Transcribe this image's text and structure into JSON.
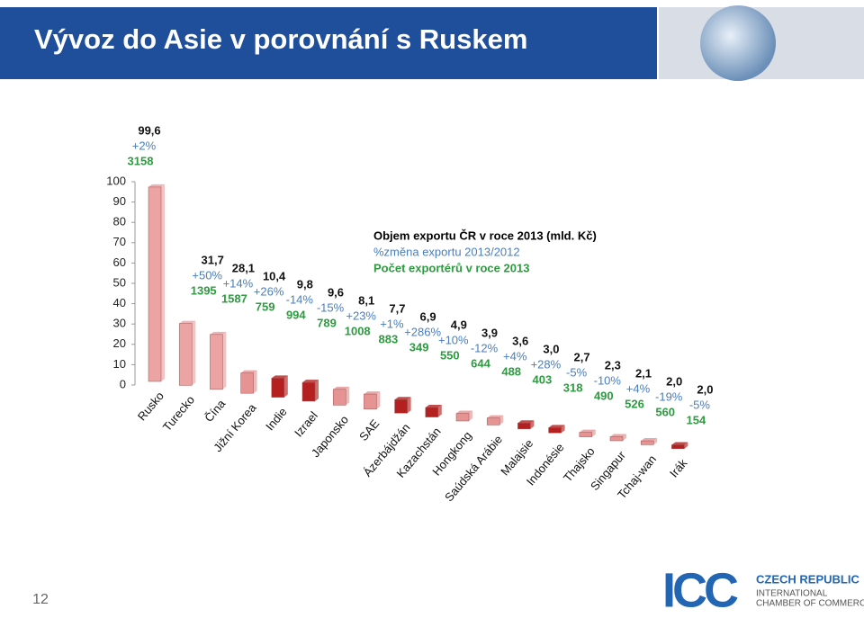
{
  "header": {
    "title": "Vývoz do Asie v porovnání s Ruskem"
  },
  "chart_data": {
    "type": "bar",
    "categories": [
      "Rusko",
      "Turecko",
      "Čína",
      "Jižní Korea",
      "Indie",
      "Izrael",
      "Japonsko",
      "SAE",
      "Ázerbájdžán",
      "Kazachstán",
      "Hongkong",
      "Saúdská Arábie",
      "Malajsie",
      "Indonésie",
      "Thajsko",
      "Singapur",
      "Tchaj-wan",
      "Irák"
    ],
    "series": [
      {
        "name": "Objem exportu ČR v roce 2013 (mld. Kč)",
        "values": [
          99.6,
          31.7,
          28.1,
          10.4,
          9.8,
          9.6,
          8.1,
          7.7,
          6.9,
          4.9,
          3.9,
          3.6,
          3.0,
          2.7,
          2.3,
          2.1,
          2.0,
          2.0
        ],
        "value_labels": [
          "99,6",
          "31,7",
          "28,1",
          "10,4",
          "9,8",
          "9,6",
          "8,1",
          "7,7",
          "6,9",
          "4,9",
          "3,9",
          "3,6",
          "3,0",
          "2,7",
          "2,3",
          "2,1",
          "2,0",
          "2,0"
        ],
        "colors": [
          "#eba3a3",
          "#eba3a3",
          "#eba3a3",
          "#e59393",
          "#b3201f",
          "#b3201f",
          "#e59393",
          "#e59393",
          "#b3201f",
          "#b3201f",
          "#e59393",
          "#e59393",
          "#b3201f",
          "#b3201f",
          "#e59393",
          "#e59393",
          "#e59393",
          "#b3201f"
        ]
      },
      {
        "name": "%změna exportu 2013/2012",
        "color": "#4a7ebb",
        "values": [
          2,
          50,
          14,
          26,
          -14,
          -15,
          23,
          1,
          286,
          10,
          -12,
          4,
          28,
          -5,
          -10,
          4,
          -19,
          -5
        ],
        "value_labels": [
          "+2%",
          "+50%",
          "+14%",
          "+26%",
          "-14%",
          "-15%",
          "+23%",
          "+1%",
          "+286%",
          "+10%",
          "-12%",
          "+4%",
          "+28%",
          "-5%",
          "-10%",
          "+4%",
          "-19%",
          "-5%"
        ]
      },
      {
        "name": "Počet exportérů v roce 2013",
        "color": "#2e9b40",
        "values": [
          3158,
          1395,
          1587,
          759,
          994,
          789,
          1008,
          883,
          349,
          550,
          644,
          488,
          403,
          318,
          490,
          526,
          560,
          154
        ]
      }
    ],
    "ylim": [
      0,
      100
    ],
    "yticks": [
      0,
      10,
      20,
      30,
      40,
      50,
      60,
      70,
      80,
      90,
      100
    ]
  },
  "footer": {
    "page_number": "12",
    "logo": {
      "mark": "ICC",
      "lines": [
        "CZECH REPUBLIC",
        "INTERNATIONAL",
        "CHAMBER OF COMMERCE"
      ]
    }
  }
}
